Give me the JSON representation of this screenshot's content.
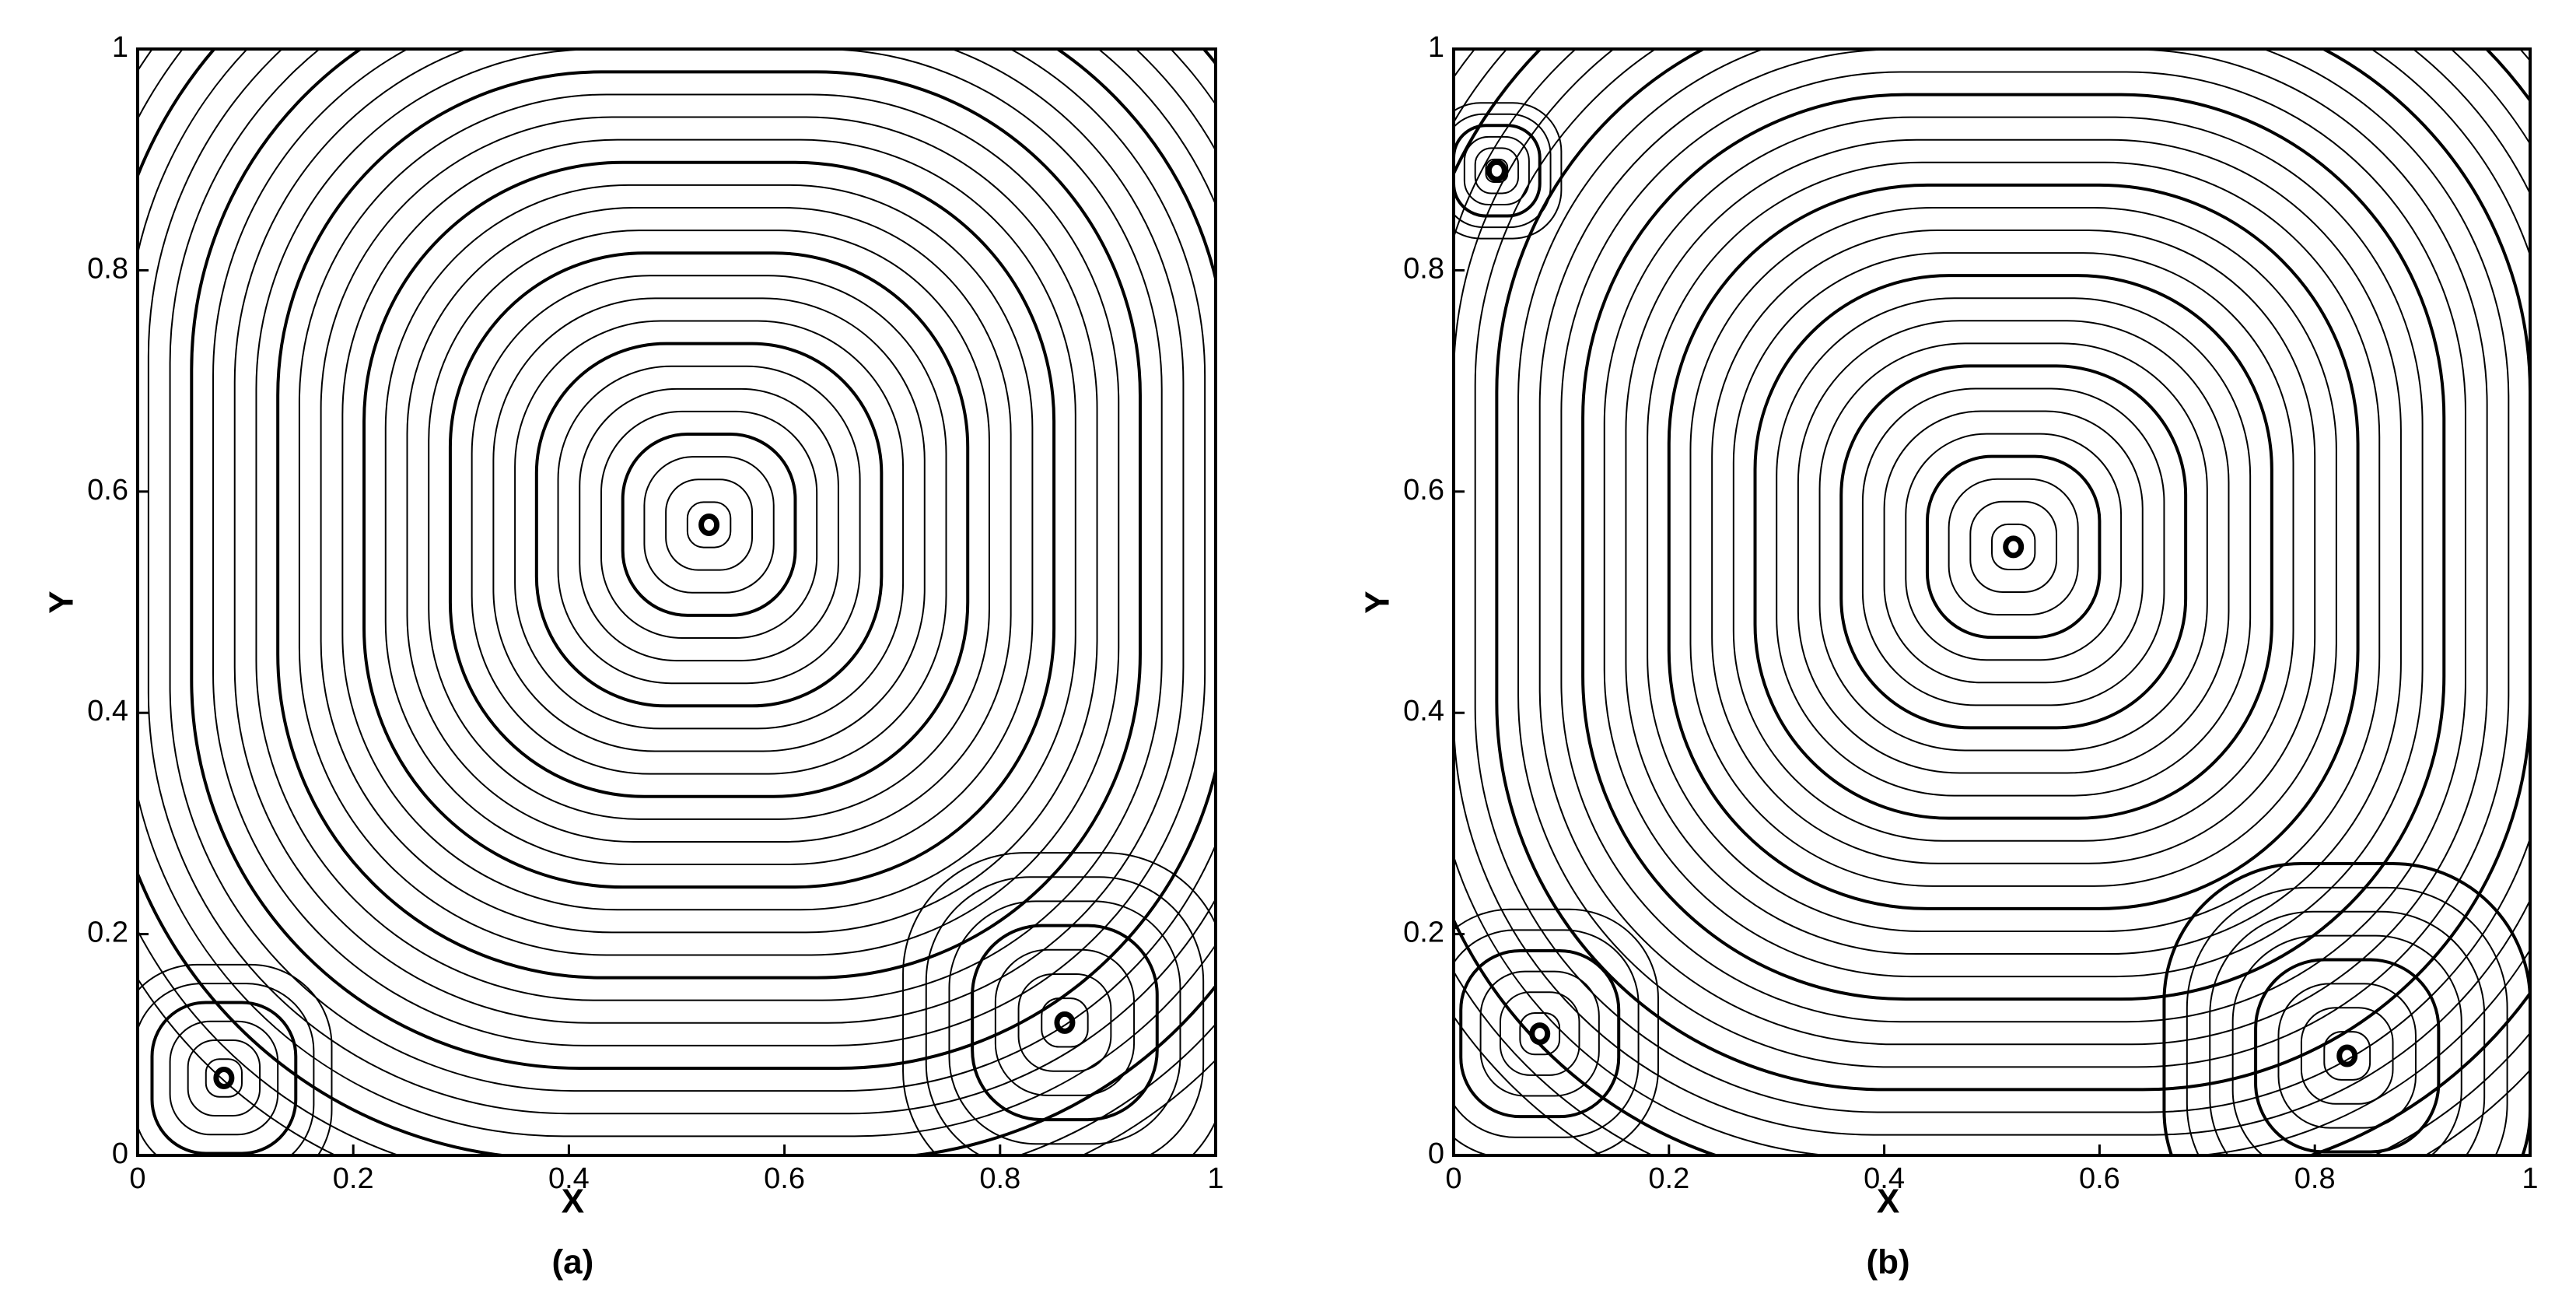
{
  "chart_data": [
    {
      "type": "streamline",
      "caption": "(a)",
      "xlabel": "X",
      "ylabel": "Y",
      "xlim": [
        0,
        1
      ],
      "ylim": [
        0,
        1
      ],
      "xticks": [
        0,
        0.2,
        0.4,
        0.6,
        0.8,
        1
      ],
      "yticks": [
        0,
        0.2,
        0.4,
        0.6,
        0.8,
        1
      ],
      "color": "#000000",
      "vortices": [
        {
          "x": 0.53,
          "y": 0.57,
          "extent": 0.6
        },
        {
          "x": 0.08,
          "y": 0.07,
          "extent": 0.1
        },
        {
          "x": 0.86,
          "y": 0.12,
          "extent": 0.15
        }
      ]
    },
    {
      "type": "streamline",
      "caption": "(b)",
      "xlabel": "X",
      "ylabel": "Y",
      "xlim": [
        0,
        1
      ],
      "ylim": [
        0,
        1
      ],
      "xticks": [
        0,
        0.2,
        0.4,
        0.6,
        0.8,
        1
      ],
      "yticks": [
        0,
        0.2,
        0.4,
        0.6,
        0.8,
        1
      ],
      "color": "#000000",
      "vortices": [
        {
          "x": 0.52,
          "y": 0.55,
          "extent": 0.6
        },
        {
          "x": 0.04,
          "y": 0.89,
          "extent": 0.06
        },
        {
          "x": 0.08,
          "y": 0.11,
          "extent": 0.11
        },
        {
          "x": 0.83,
          "y": 0.09,
          "extent": 0.17
        }
      ]
    }
  ]
}
